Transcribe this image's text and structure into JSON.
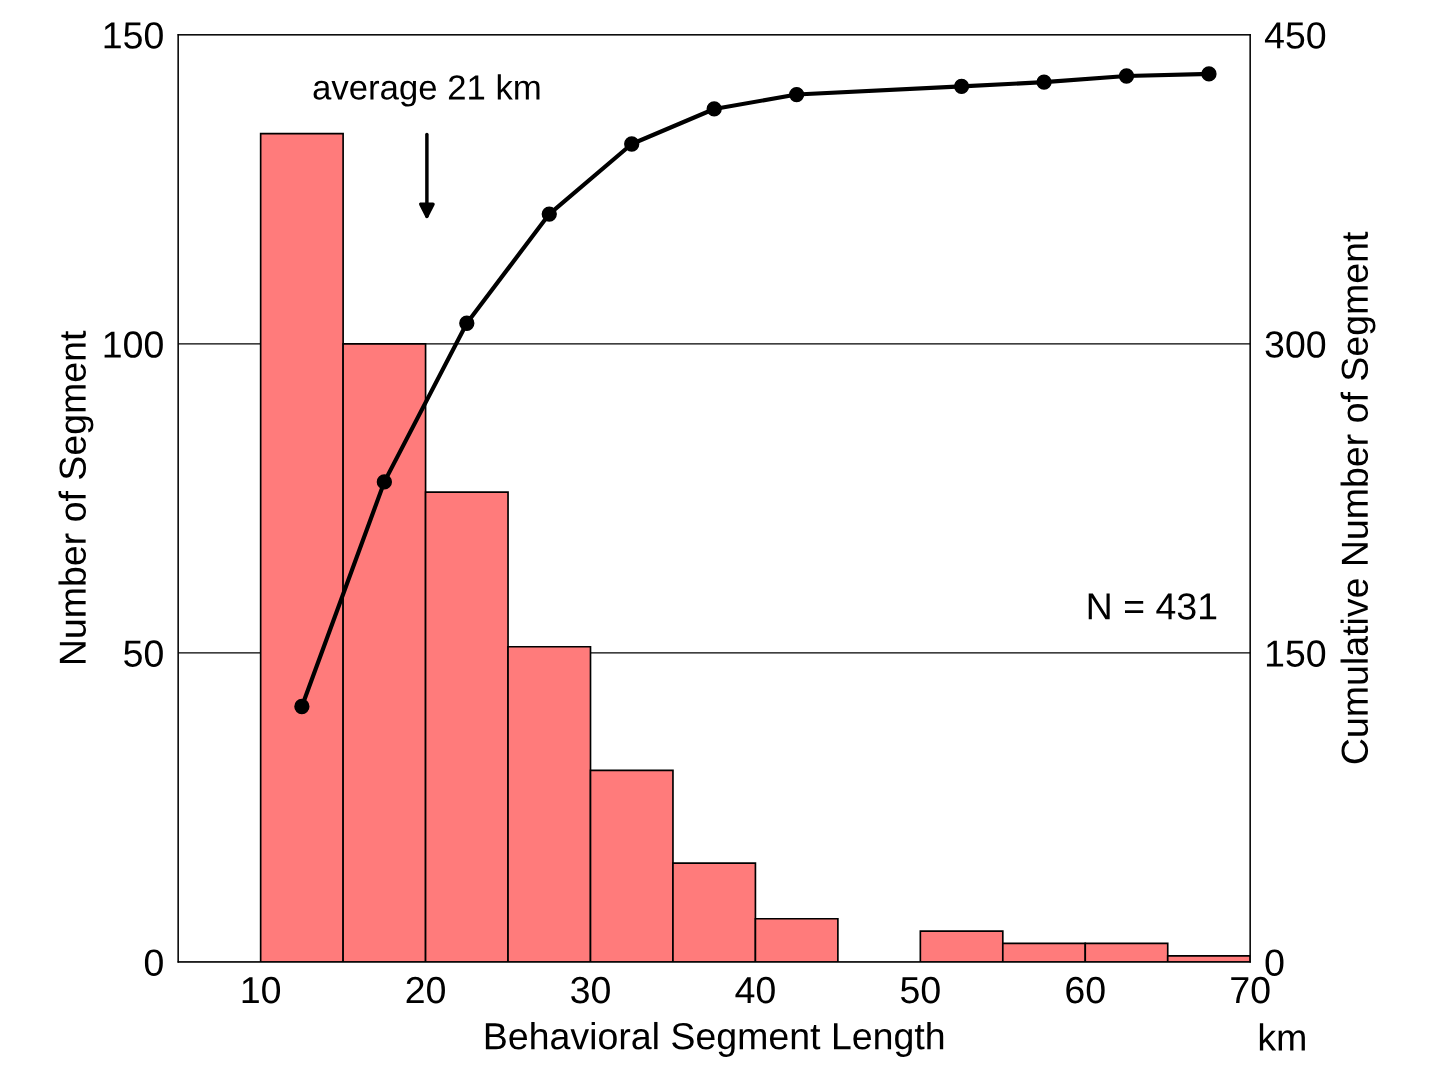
{
  "chart_data": {
    "type": "histogram",
    "xlabel": "Behavioral Segment Length",
    "ylabel": "Number of Segment",
    "y2label": "Cumulative Number of Segment",
    "bins": [
      10,
      15,
      20,
      25,
      30,
      35,
      40,
      45,
      50,
      55,
      60,
      65,
      70
    ],
    "values": [
      134,
      100,
      76,
      51,
      31,
      16,
      7,
      0,
      5,
      3,
      3,
      1
    ],
    "color": "#ff7b7b",
    "series": [
      {
        "type": "line",
        "axis": "y2",
        "color": "#000000",
        "marker": "circle",
        "x": [
          12.5,
          17.5,
          22.5,
          27.5,
          32.5,
          37.5,
          42.5,
          52.5,
          57.5,
          62.5,
          67.5
        ],
        "values": [
          124,
          233,
          310,
          363,
          397,
          414,
          421,
          425,
          427,
          430,
          431
        ]
      }
    ],
    "xlim": [
      5,
      70
    ],
    "xticks": [
      10,
      20,
      30,
      40,
      50,
      60,
      70
    ],
    "ylim": [
      0,
      150
    ],
    "yticks": [
      0,
      50,
      100,
      150
    ],
    "y2lim": [
      0,
      450
    ],
    "y2ticks": [
      0,
      150,
      300,
      450
    ],
    "grid": "y",
    "annotations": [
      "average 21 km",
      "N = 431",
      "km"
    ]
  }
}
